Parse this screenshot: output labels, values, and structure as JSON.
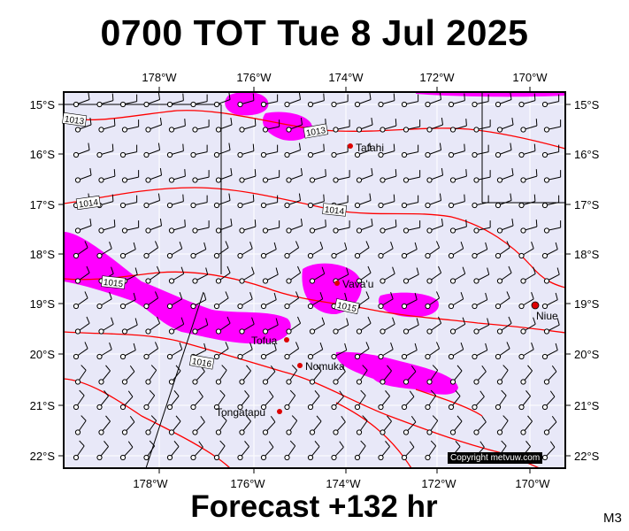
{
  "title": "0700 TOT Tue 8 Jul 2025",
  "footer": "Forecast +132 hr",
  "model_code": "M3",
  "copyright": "Copyright metvuw.com",
  "colors": {
    "map_background": "#e8e8f8",
    "isobar": "#ff0000",
    "rain": "#ff00ff",
    "town_marker": "#dd0000",
    "wind_barb": "#000000"
  },
  "axes": {
    "lon_labels": [
      "178°W",
      "176°W",
      "174°W",
      "172°W",
      "170°W"
    ],
    "lat_labels": [
      "15°S",
      "16°S",
      "17°S",
      "18°S",
      "19°S",
      "20°S",
      "21°S",
      "22°S"
    ]
  },
  "towns": [
    {
      "name": "Tafahi"
    },
    {
      "name": "Vava'u"
    },
    {
      "name": "Niue"
    },
    {
      "name": "Tofua"
    },
    {
      "name": "Nomuka"
    },
    {
      "name": "Tongatapu"
    }
  ],
  "isobar_labels": [
    "1013",
    "1013",
    "1014",
    "1014",
    "1015",
    "1015",
    "1016"
  ]
}
